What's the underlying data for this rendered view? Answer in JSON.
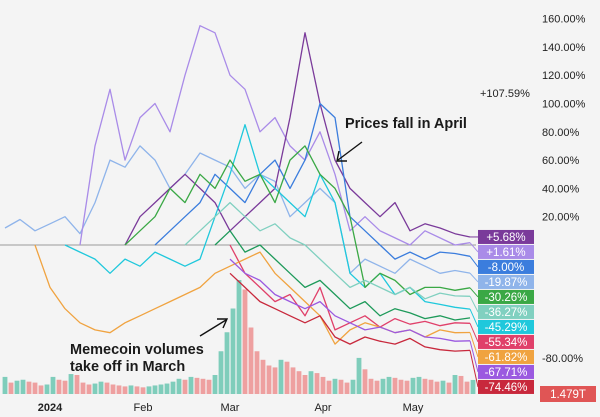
{
  "chart_data": {
    "type": "line",
    "title": "",
    "xlabel": "",
    "ylabel": "",
    "ylim": [
      -80,
      160
    ],
    "y_ticks": [
      "160.00%",
      "140.00%",
      "120.00%",
      "100.00%",
      "80.00%",
      "60.00%",
      "40.00%",
      "20.00%",
      "-80.00%"
    ],
    "y_tick_values": [
      160,
      140,
      120,
      100,
      80,
      60,
      40,
      20,
      -80
    ],
    "x_ticks": [
      {
        "label": "2024",
        "date": "2024-01-01",
        "bold": true
      },
      {
        "label": "Feb",
        "date": "2024-02-01"
      },
      {
        "label": "Mar",
        "date": "2024-03-01"
      },
      {
        "label": "Apr",
        "date": "2024-04-01"
      },
      {
        "label": "May",
        "date": "2024-05-01"
      }
    ],
    "zero_line": true,
    "grid": false,
    "extra_label": {
      "text": "+107.59%",
      "value": 107.59
    },
    "x": [
      "2023-12-17",
      "2023-12-22",
      "2023-12-27",
      "2024-01-01",
      "2024-01-06",
      "2024-01-11",
      "2024-01-16",
      "2024-01-21",
      "2024-01-26",
      "2024-01-31",
      "2024-02-05",
      "2024-02-10",
      "2024-02-15",
      "2024-02-20",
      "2024-02-25",
      "2024-03-01",
      "2024-03-06",
      "2024-03-11",
      "2024-03-16",
      "2024-03-21",
      "2024-03-26",
      "2024-03-31",
      "2024-04-05",
      "2024-04-10",
      "2024-04-15",
      "2024-04-20",
      "2024-04-25",
      "2024-04-30",
      "2024-05-05",
      "2024-05-10",
      "2024-05-15",
      "2024-05-20"
    ],
    "series": [
      {
        "color": "#8fb4ea",
        "badge": "-19.87%",
        "values": [
          12,
          18,
          10,
          15,
          20,
          8,
          30,
          60,
          55,
          70,
          60,
          40,
          50,
          65,
          60,
          55,
          40,
          50,
          45,
          20,
          30,
          40,
          30,
          -20,
          -10,
          -15,
          -20,
          -10,
          -15,
          -20,
          -18,
          -19.87
        ]
      },
      {
        "color": "#a98be8",
        "badge": "+1.61%",
        "values": [
          null,
          null,
          null,
          null,
          null,
          0,
          70,
          110,
          60,
          90,
          100,
          80,
          120,
          155,
          150,
          120,
          110,
          80,
          90,
          70,
          60,
          80,
          50,
          10,
          20,
          10,
          5,
          0,
          10,
          5,
          0,
          1.61
        ]
      },
      {
        "color": "#7a3a9a",
        "badge": "+5.68%",
        "values": [
          null,
          null,
          null,
          null,
          null,
          null,
          null,
          null,
          0,
          20,
          30,
          40,
          50,
          40,
          30,
          10,
          20,
          30,
          40,
          90,
          150,
          100,
          60,
          40,
          30,
          20,
          30,
          10,
          15,
          12,
          8,
          5.68
        ]
      },
      {
        "color": "#3b7ddd",
        "badge": "-8.00%",
        "values": [
          null,
          null,
          null,
          null,
          null,
          null,
          null,
          null,
          null,
          null,
          0,
          10,
          20,
          30,
          50,
          40,
          30,
          50,
          60,
          40,
          60,
          100,
          90,
          20,
          10,
          0,
          -10,
          -5,
          -10,
          -5,
          -6,
          -8
        ]
      },
      {
        "color": "#1fc8dc",
        "badge": "-45.29%",
        "values": [
          null,
          null,
          null,
          null,
          0,
          -5,
          -10,
          -20,
          -10,
          -15,
          -5,
          -10,
          -15,
          -10,
          20,
          50,
          85,
          50,
          40,
          30,
          20,
          50,
          30,
          -20,
          -30,
          -20,
          -35,
          -30,
          -40,
          -42,
          -44,
          -45.29
        ]
      },
      {
        "color": "#3aa845",
        "badge": "-30.26%",
        "values": [
          null,
          null,
          null,
          null,
          null,
          null,
          null,
          null,
          0,
          10,
          20,
          40,
          30,
          50,
          40,
          60,
          45,
          50,
          30,
          60,
          70,
          50,
          40,
          20,
          -30,
          -20,
          -25,
          -35,
          -30,
          -30,
          -32,
          -30.26
        ]
      },
      {
        "color": "#80d0c0",
        "badge": "-36.27%",
        "values": [
          null,
          null,
          null,
          null,
          null,
          null,
          null,
          null,
          null,
          null,
          null,
          null,
          0,
          10,
          20,
          30,
          20,
          10,
          15,
          5,
          0,
          -10,
          -20,
          -30,
          -25,
          -30,
          -35,
          -30,
          -38,
          -34,
          -36,
          -36.27
        ]
      },
      {
        "color": "#1e9a5a",
        "badge": "",
        "values": [
          null,
          null,
          null,
          null,
          null,
          null,
          null,
          null,
          null,
          null,
          null,
          null,
          null,
          null,
          0,
          10,
          -5,
          0,
          -10,
          -20,
          -30,
          -25,
          -35,
          -45,
          -40,
          -50,
          -45,
          -48,
          -52,
          -50,
          -53,
          -51.5
        ]
      },
      {
        "color": "#e0406a",
        "badge": "-55.34%",
        "values": [
          null,
          null,
          null,
          null,
          null,
          null,
          null,
          null,
          null,
          null,
          null,
          null,
          null,
          null,
          null,
          0,
          -20,
          -30,
          -40,
          -35,
          -50,
          -30,
          -60,
          -55,
          -50,
          -58,
          -52,
          -56,
          -54,
          -57,
          -55,
          -55.34
        ]
      },
      {
        "color": "#f0a340",
        "badge": "-61.82%",
        "values": [
          null,
          null,
          0,
          -30,
          -45,
          -55,
          -60,
          -62,
          -55,
          -50,
          -45,
          -40,
          -35,
          -30,
          -20,
          -15,
          -10,
          -5,
          -20,
          -30,
          -40,
          -50,
          -70,
          -60,
          -55,
          -58,
          -62,
          -60,
          -65,
          -60,
          -62,
          -61.82
        ]
      },
      {
        "color": "#9b59e0",
        "badge": "-67.71%",
        "values": [
          null,
          null,
          null,
          null,
          null,
          null,
          null,
          null,
          null,
          null,
          null,
          null,
          null,
          null,
          null,
          -10,
          -20,
          -25,
          -35,
          -40,
          -45,
          -40,
          -50,
          -55,
          -60,
          -58,
          -62,
          -60,
          -65,
          -66,
          -68,
          -67.71
        ]
      },
      {
        "color": "#c8283c",
        "badge": "-74.46%",
        "values": [
          null,
          null,
          null,
          null,
          null,
          null,
          null,
          null,
          null,
          null,
          null,
          null,
          null,
          null,
          null,
          -20,
          -30,
          -40,
          -45,
          -50,
          -55,
          -50,
          -65,
          -70,
          -65,
          -68,
          -70,
          -66,
          -72,
          -74,
          -75,
          -74.46
        ]
      }
    ],
    "volume": {
      "start": "2023-12-17",
      "interval_days": 2,
      "unit": "T",
      "latest_label": "1.479T",
      "latest_color": "#e05555",
      "up_color": "#7fcdbb",
      "down_color": "#eea0a0",
      "values": [
        1.8,
        1.2,
        1.4,
        1.5,
        1.3,
        1.2,
        0.9,
        1.0,
        1.8,
        1.5,
        1.4,
        2.1,
        2.0,
        1.2,
        1.0,
        1.1,
        1.3,
        1.2,
        1.0,
        0.9,
        0.8,
        0.9,
        0.8,
        0.7,
        0.8,
        0.9,
        1.0,
        1.1,
        1.3,
        1.6,
        1.5,
        1.8,
        1.7,
        1.6,
        1.5,
        2.0,
        4.5,
        6.5,
        9.0,
        12.0,
        11.0,
        7.0,
        4.5,
        3.6,
        3.0,
        2.8,
        3.6,
        3.4,
        2.8,
        2.4,
        2.0,
        2.4,
        2.2,
        1.8,
        1.4,
        1.6,
        1.5,
        1.2,
        1.5,
        3.8,
        2.6,
        1.6,
        1.4,
        1.6,
        1.8,
        1.7,
        1.5,
        1.4,
        1.7,
        1.8,
        1.6,
        1.5,
        1.3,
        1.4,
        1.2,
        2.0,
        1.9,
        1.3,
        1.479
      ]
    },
    "annotations": [
      {
        "lines": [
          "Prices fall in April"
        ]
      },
      {
        "lines": [
          "Memecoin volumes",
          "take off in March"
        ]
      }
    ]
  }
}
